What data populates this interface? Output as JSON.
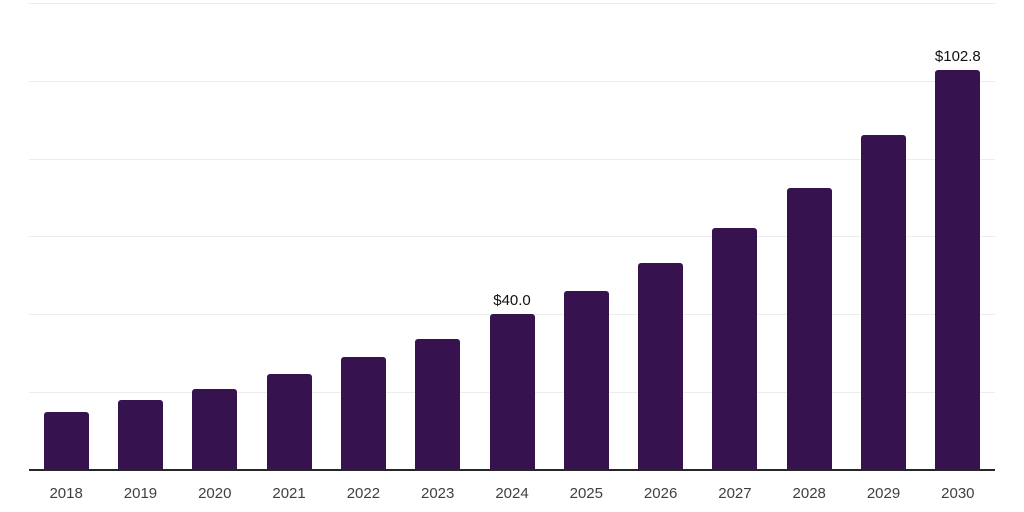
{
  "chart_data": {
    "type": "bar",
    "title": "",
    "xlabel": "",
    "ylabel": "",
    "categories": [
      "2018",
      "2019",
      "2020",
      "2021",
      "2022",
      "2023",
      "2024",
      "2025",
      "2026",
      "2027",
      "2028",
      "2029",
      "2030"
    ],
    "values": [
      15.0,
      17.9,
      20.8,
      24.7,
      29.0,
      33.7,
      40.0,
      46.0,
      53.2,
      62.1,
      72.5,
      86.0,
      102.8
    ],
    "data_labels": [
      null,
      null,
      null,
      null,
      null,
      null,
      "$40.0",
      null,
      null,
      null,
      null,
      null,
      "$102.8"
    ],
    "ylim": [
      0,
      120
    ],
    "gridline_step": 20,
    "grid": "horizontal",
    "legend": "none",
    "y_axis_labels_visible": false,
    "colors": {
      "bar": "#36134E",
      "gridline": "#EDEDED",
      "axis_line": "#262626",
      "tick_label": "#404040",
      "data_label": "#111111",
      "background": "#FFFFFF"
    }
  }
}
